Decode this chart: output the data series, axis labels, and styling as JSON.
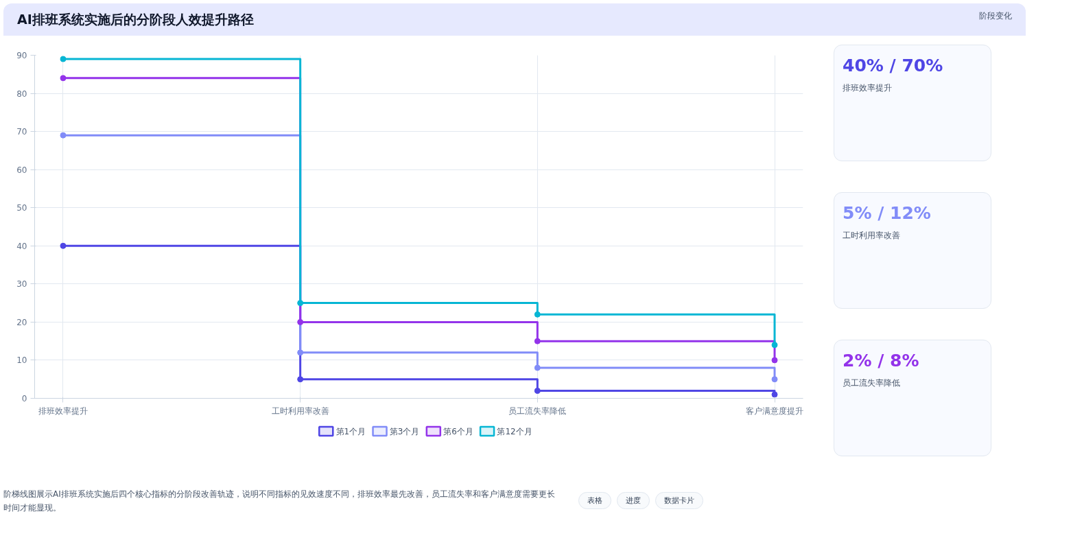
{
  "chart_data": [
    {
      "type": "step",
      "title": "AI排班系统实施后的分阶段人效提升路径",
      "categories": [
        "排班效率提升",
        "工时利用率改善",
        "员工流失率降低",
        "客户满意度提升"
      ],
      "series": [
        {
          "name": "第1个月",
          "color": "#4f46e5",
          "values": [
            40,
            5,
            2,
            1
          ]
        },
        {
          "name": "第3个月",
          "color": "#818cf8",
          "values": [
            69,
            12,
            8,
            5
          ]
        },
        {
          "name": "第6个月",
          "color": "#9333ea",
          "values": [
            84,
            20,
            15,
            10
          ]
        },
        {
          "name": "第12个月",
          "color": "#06b6d4",
          "values": [
            89,
            25,
            22,
            14
          ]
        }
      ],
      "ylim": [
        0,
        90
      ],
      "yticks": [
        0,
        10,
        20,
        30,
        40,
        50,
        60,
        70,
        80,
        90
      ],
      "grid": true,
      "legend": "bottom",
      "marker": "circle",
      "line_style": "solid",
      "annotations": [
        "阶段变化",
        "阶梯线图展示AI排班系统实施后四个核心指标的分阶段改善轨迹，说明不同指标的见效速度不同，排班效率最先改善，员工流失率和客户满意度需要更长时间才能显现。",
        "表格",
        "进度",
        "数据卡片"
      ]
    },
    {
      "type": "other",
      "title": "40% / 70%",
      "subtitle": "排班效率提升"
    },
    {
      "type": "other",
      "title": "5% / 12%",
      "subtitle": "工时利用率改善"
    },
    {
      "type": "other",
      "title": "2% / 8%",
      "subtitle": "员工流失率降低"
    }
  ]
}
